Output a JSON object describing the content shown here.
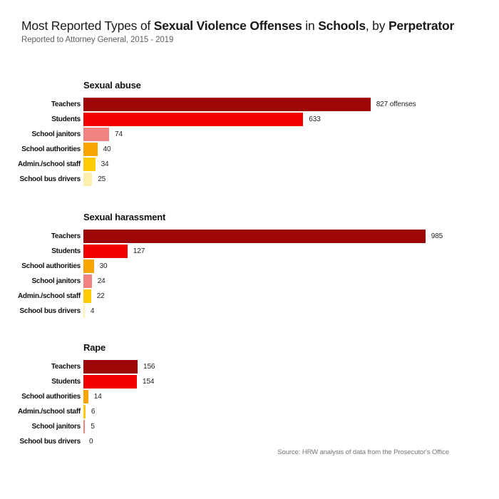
{
  "header": {
    "title_plain": "Most Reported Types of Sexual Violence Offenses in Schools, by Perpetrator",
    "title_segments": [
      {
        "text": "Most Reported Types of ",
        "bold": false
      },
      {
        "text": "Sexual Violence Offenses",
        "bold": true
      },
      {
        "text": " in ",
        "bold": false
      },
      {
        "text": "Schools",
        "bold": true
      },
      {
        "text": ", by ",
        "bold": false
      },
      {
        "text": "Perpetrator",
        "bold": true
      }
    ],
    "subtitle": "Reported to Attorney General, 2015 - 2019"
  },
  "palette": {
    "teachers": "#9c0606",
    "students": "#f10000",
    "school_janitors": "#f0827f",
    "school_authorities": "#f8a401",
    "admin_school_staff": "#fecb02",
    "school_bus_drivers": "#fcefae"
  },
  "chart_data": [
    {
      "type": "bar",
      "orientation": "horizontal",
      "title": "Sexual abuse",
      "categories": [
        "Teachers",
        "Students",
        "School janitors",
        "School authorities",
        "Admin./school staff",
        "School bus drivers"
      ],
      "values": [
        827,
        633,
        74,
        40,
        34,
        25
      ],
      "value_labels": [
        "827 offenses",
        "633",
        "74",
        "40",
        "34",
        "25"
      ],
      "colors": [
        "#9c0606",
        "#f10000",
        "#f0827f",
        "#f8a401",
        "#fecb02",
        "#fcefae"
      ],
      "xlim": [
        0,
        1010
      ],
      "grid": false,
      "legend": false
    },
    {
      "type": "bar",
      "orientation": "horizontal",
      "title": "Sexual harassment",
      "categories": [
        "Teachers",
        "Students",
        "School authorities",
        "School janitors",
        "Admin./school staff",
        "School bus drivers"
      ],
      "values": [
        985,
        127,
        30,
        24,
        22,
        4
      ],
      "value_labels": [
        "985",
        "127",
        "30",
        "24",
        "22",
        "4"
      ],
      "colors": [
        "#9c0606",
        "#f10000",
        "#f8a401",
        "#f0827f",
        "#fecb02",
        "#fcefae"
      ],
      "xlim": [
        0,
        1010
      ],
      "grid": false,
      "legend": false
    },
    {
      "type": "bar",
      "orientation": "horizontal",
      "title": "Rape",
      "categories": [
        "Teachers",
        "Students",
        "School authorities",
        "Admin./school staff",
        "School janitors",
        "School bus drivers"
      ],
      "values": [
        156,
        154,
        14,
        6,
        5,
        0
      ],
      "value_labels": [
        "156",
        "154",
        "14",
        "6",
        "5",
        "0"
      ],
      "colors": [
        "#9c0606",
        "#f10000",
        "#f8a401",
        "#fecb02",
        "#f0827f",
        "#fcefae"
      ],
      "xlim": [
        0,
        1010
      ],
      "grid": false,
      "legend": false
    }
  ],
  "footer": {
    "source": "Source: HRW analysis of data from the Prosecutor's Office"
  }
}
